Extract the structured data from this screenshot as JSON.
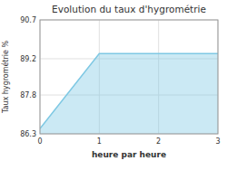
{
  "chart_data": {
    "type": "area",
    "title": "Evolution du taux d'hygrométrie",
    "x_label": "heure par heure",
    "y_label": "Taux hygrométrie %",
    "x": [
      0,
      1,
      3
    ],
    "values": [
      86.5,
      89.4,
      89.4
    ],
    "color": "#7ec8e3",
    "xlim": [
      0,
      3
    ],
    "ylim": [
      86.3,
      90.7
    ],
    "xticks": [
      0,
      1,
      2,
      3
    ],
    "yticks": [
      86.3,
      87.8,
      89.2,
      90.7
    ],
    "grid": true
  }
}
